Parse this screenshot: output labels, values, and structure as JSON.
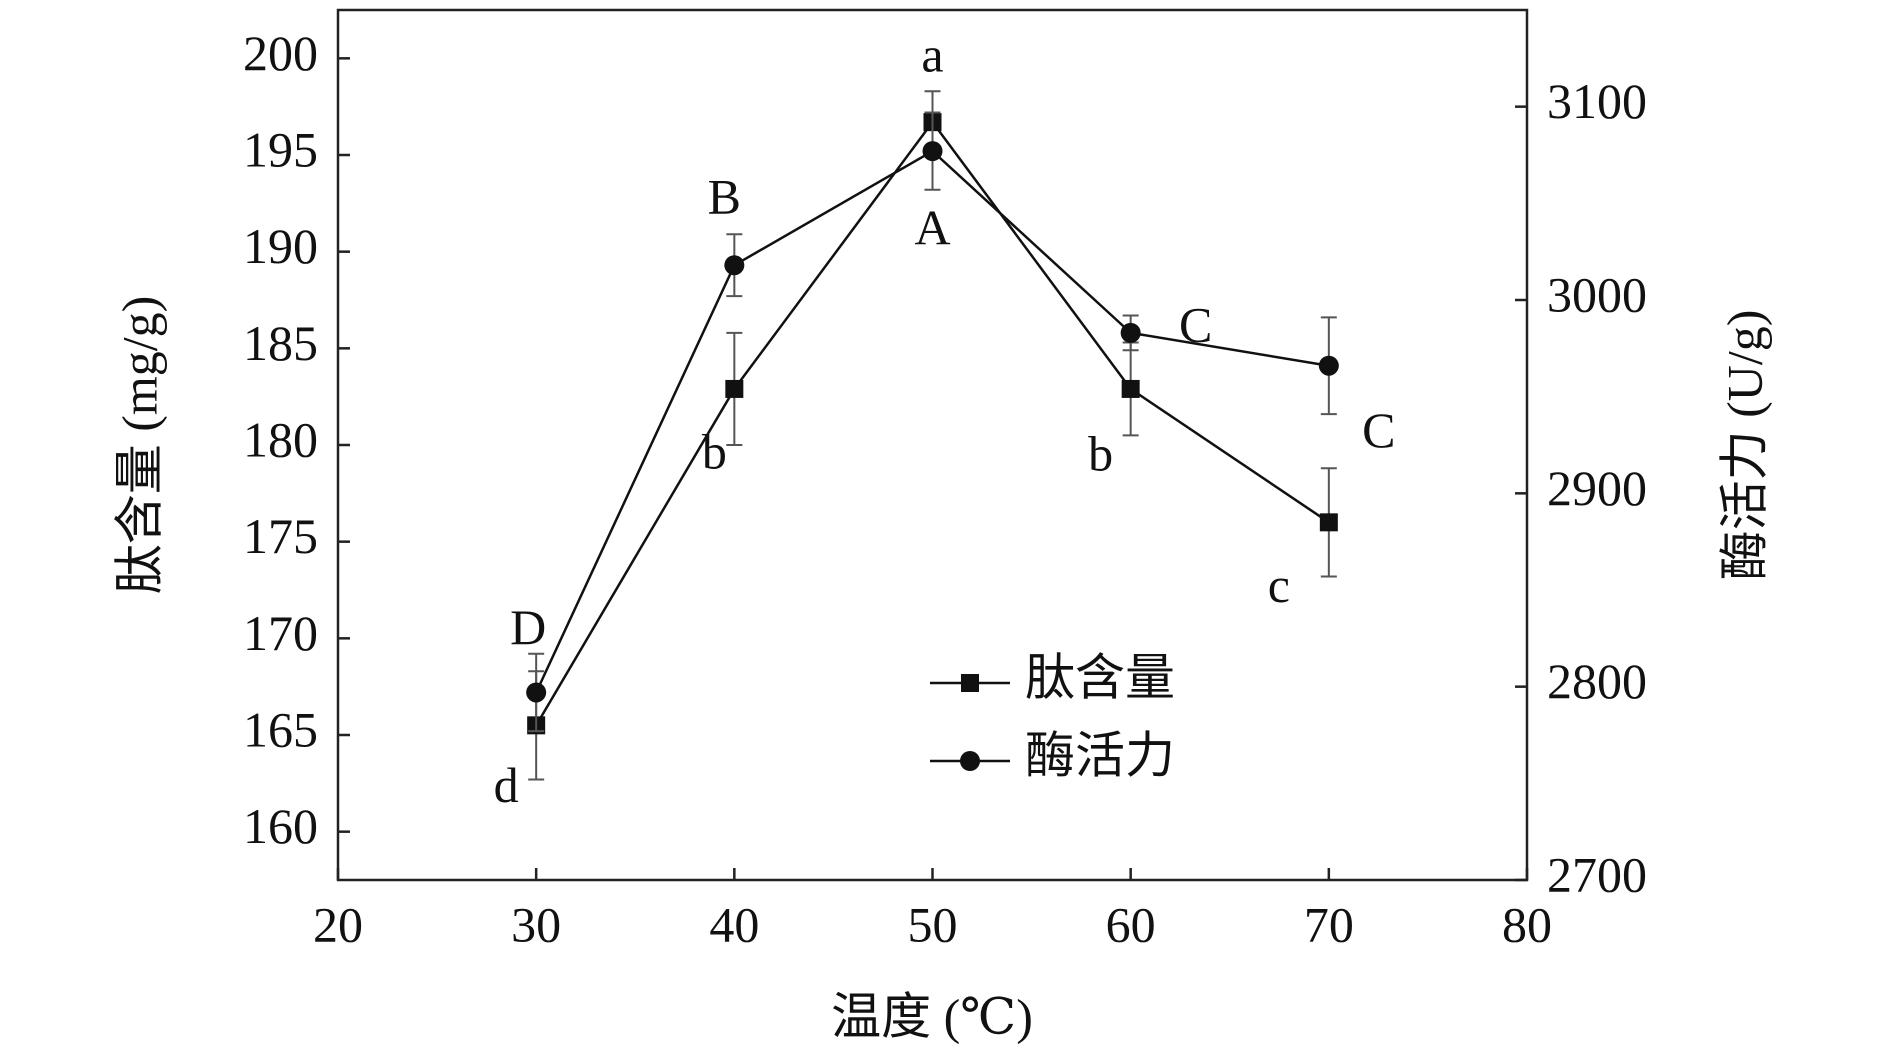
{
  "chart_data": {
    "type": "line",
    "x_label": "温度 (℃)",
    "y_label": "肽含量 (mg/g)",
    "y2_label": "酶活力 (U/g)",
    "x": [
      30,
      40,
      50,
      60,
      70
    ],
    "xlim": [
      20,
      80
    ],
    "xticks": [
      20,
      30,
      40,
      50,
      60,
      70,
      80
    ],
    "ylim": [
      157.5,
      202.5
    ],
    "yticks": [
      160,
      165,
      170,
      175,
      180,
      185,
      190,
      195,
      200
    ],
    "y2lim": [
      2700,
      3150
    ],
    "y2ticks": [
      2700,
      2800,
      2900,
      3000,
      3100
    ],
    "legend": "bottom-center",
    "series": [
      {
        "name": "肽含量",
        "color": "#111111",
        "marker": "square",
        "values": [
          165.5,
          182.9,
          196.7,
          182.9,
          176.0
        ],
        "errors": [
          2.8,
          2.9,
          1.6,
          2.4,
          2.8
        ],
        "letters": [
          "d",
          "b",
          "a",
          "b",
          "c"
        ]
      },
      {
        "name": "酶活力",
        "color": "#111111",
        "marker": "circle",
        "axis": "y2",
        "values": [
          2797,
          3018,
          3077,
          2983,
          2966
        ],
        "errors": [
          20,
          16,
          20,
          9,
          25
        ],
        "letters": [
          "D",
          "B",
          "A",
          "C",
          "C"
        ]
      }
    ]
  }
}
